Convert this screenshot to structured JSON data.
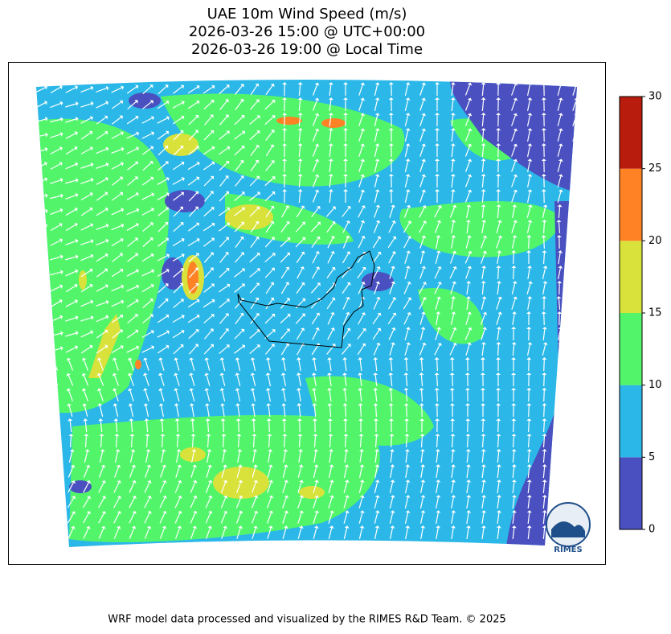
{
  "title_lines": [
    "UAE 10m Wind Speed (m/s)",
    "2026-03-26 15:00 @ UTC+00:00",
    "2026-03-26 19:00 @ Local Time"
  ],
  "colorbar": {
    "levels": [
      0,
      5,
      10,
      15,
      20,
      25,
      30
    ],
    "colors": [
      "#4a50bf",
      "#2bb8e8",
      "#52f56a",
      "#d9e23a",
      "#ff8225",
      "#b71c0c"
    ]
  },
  "logo": "RIMES",
  "footer": "WRF model data processed and visualized by the RIMES R&D Team. © 2025"
}
